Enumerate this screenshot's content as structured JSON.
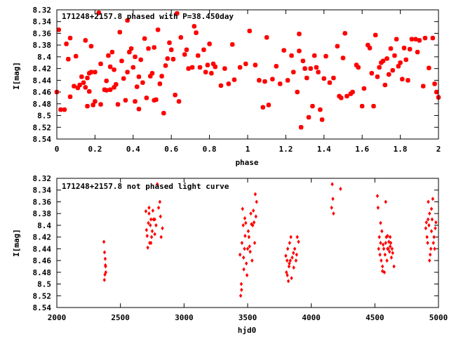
{
  "chart_data": [
    {
      "type": "scatter",
      "title": "171248+2157.8 phased with P=38.450day",
      "xlabel": "phase",
      "ylabel": "I[mag]",
      "xlim": [
        0,
        2
      ],
      "ylim": [
        8.54,
        8.32
      ],
      "y_axis_inverted": true,
      "xticks": [
        "0",
        "0.2",
        "0.4",
        "0.6",
        "0.8",
        "1",
        "1.2",
        "1.4",
        "1.6",
        "1.8",
        "2"
      ],
      "yticks": [
        "8.32",
        "8.34",
        "8.36",
        "8.38",
        "8.4",
        "8.42",
        "8.44",
        "8.46",
        "8.48",
        "8.5",
        "8.52",
        "8.54"
      ],
      "grid": false,
      "marker_color": "#ff0000",
      "marker": "filled-circle",
      "points": [
        [
          0.0,
          8.46
        ],
        [
          0.01,
          8.354
        ],
        [
          0.02,
          8.49
        ],
        [
          0.04,
          8.49
        ],
        [
          0.05,
          8.378
        ],
        [
          0.06,
          8.404
        ],
        [
          0.07,
          8.368
        ],
        [
          0.07,
          8.468
        ],
        [
          0.09,
          8.45
        ],
        [
          0.1,
          8.399
        ],
        [
          0.11,
          8.453
        ],
        [
          0.12,
          8.448
        ],
        [
          0.13,
          8.434
        ],
        [
          0.14,
          8.444
        ],
        [
          0.15,
          8.372
        ],
        [
          0.15,
          8.452
        ],
        [
          0.16,
          8.484
        ],
        [
          0.16,
          8.436
        ],
        [
          0.17,
          8.428
        ],
        [
          0.17,
          8.459
        ],
        [
          0.18,
          8.426
        ],
        [
          0.18,
          8.382
        ],
        [
          0.19,
          8.482
        ],
        [
          0.2,
          8.476
        ],
        [
          0.2,
          8.426
        ],
        [
          0.22,
          8.325
        ],
        [
          0.23,
          8.412
        ],
        [
          0.23,
          8.481
        ],
        [
          0.25,
          8.456
        ],
        [
          0.26,
          8.457
        ],
        [
          0.26,
          8.441
        ],
        [
          0.27,
          8.398
        ],
        [
          0.28,
          8.417
        ],
        [
          0.28,
          8.456
        ],
        [
          0.29,
          8.392
        ],
        [
          0.3,
          8.422
        ],
        [
          0.3,
          8.452
        ],
        [
          0.31,
          8.447
        ],
        [
          0.32,
          8.481
        ],
        [
          0.33,
          8.358
        ],
        [
          0.34,
          8.407
        ],
        [
          0.35,
          8.437
        ],
        [
          0.36,
          8.474
        ],
        [
          0.37,
          8.426
        ],
        [
          0.37,
          8.338
        ],
        [
          0.38,
          8.392
        ],
        [
          0.39,
          8.386
        ],
        [
          0.4,
          8.418
        ],
        [
          0.41,
          8.476
        ],
        [
          0.41,
          8.4
        ],
        [
          0.42,
          8.451
        ],
        [
          0.43,
          8.434
        ],
        [
          0.43,
          8.489
        ],
        [
          0.44,
          8.405
        ],
        [
          0.45,
          8.444
        ],
        [
          0.46,
          8.369
        ],
        [
          0.47,
          8.47
        ],
        [
          0.48,
          8.386
        ],
        [
          0.49,
          8.433
        ],
        [
          0.5,
          8.428
        ],
        [
          0.51,
          8.474
        ],
        [
          0.51,
          8.384
        ],
        [
          0.52,
          8.473
        ],
        [
          0.53,
          8.354
        ],
        [
          0.54,
          8.446
        ],
        [
          0.55,
          8.433
        ],
        [
          0.56,
          8.496
        ],
        [
          0.57,
          8.415
        ],
        [
          0.58,
          8.403
        ],
        [
          0.59,
          8.376
        ],
        [
          0.6,
          8.388
        ],
        [
          0.61,
          8.404
        ],
        [
          0.62,
          8.465
        ],
        [
          0.63,
          8.326
        ],
        [
          0.64,
          8.476
        ],
        [
          0.65,
          8.367
        ],
        [
          0.67,
          8.396
        ],
        [
          0.68,
          8.388
        ],
        [
          0.69,
          8.42
        ],
        [
          0.71,
          8.418
        ],
        [
          0.72,
          8.348
        ],
        [
          0.73,
          8.359
        ],
        [
          0.74,
          8.398
        ],
        [
          0.75,
          8.418
        ],
        [
          0.77,
          8.388
        ],
        [
          0.78,
          8.426
        ],
        [
          0.79,
          8.414
        ],
        [
          0.8,
          8.378
        ],
        [
          0.81,
          8.428
        ],
        [
          0.82,
          8.412
        ],
        [
          0.83,
          8.417
        ],
        [
          0.86,
          8.449
        ],
        [
          0.88,
          8.42
        ],
        [
          0.9,
          8.446
        ],
        [
          0.92,
          8.379
        ],
        [
          0.93,
          8.439
        ],
        [
          0.96,
          8.418
        ],
        [
          0.99,
          8.412
        ],
        [
          1.01,
          8.356
        ],
        [
          1.04,
          8.414
        ],
        [
          1.06,
          8.44
        ],
        [
          1.08,
          8.486
        ],
        [
          1.09,
          8.442
        ],
        [
          1.1,
          8.367
        ],
        [
          1.11,
          8.482
        ],
        [
          1.13,
          8.438
        ],
        [
          1.15,
          8.416
        ],
        [
          1.17,
          8.446
        ],
        [
          1.19,
          8.389
        ],
        [
          1.21,
          8.44
        ],
        [
          1.23,
          8.398
        ],
        [
          1.24,
          8.426
        ],
        [
          1.26,
          8.46
        ],
        [
          1.27,
          8.39
        ],
        [
          1.27,
          8.361
        ],
        [
          1.28,
          8.52
        ],
        [
          1.29,
          8.407
        ],
        [
          1.3,
          8.42
        ],
        [
          1.31,
          8.436
        ],
        [
          1.32,
          8.503
        ],
        [
          1.33,
          8.42
        ],
        [
          1.34,
          8.484
        ],
        [
          1.35,
          8.398
        ],
        [
          1.36,
          8.418
        ],
        [
          1.37,
          8.426
        ],
        [
          1.38,
          8.49
        ],
        [
          1.39,
          8.507
        ],
        [
          1.4,
          8.437
        ],
        [
          1.41,
          8.399
        ],
        [
          1.43,
          8.444
        ],
        [
          1.45,
          8.436
        ],
        [
          1.47,
          8.382
        ],
        [
          1.48,
          8.467
        ],
        [
          1.49,
          8.47
        ],
        [
          1.5,
          8.402
        ],
        [
          1.51,
          8.36
        ],
        [
          1.52,
          8.467
        ],
        [
          1.54,
          8.463
        ],
        [
          1.55,
          8.46
        ],
        [
          1.57,
          8.414
        ],
        [
          1.58,
          8.418
        ],
        [
          1.6,
          8.484
        ],
        [
          1.61,
          8.454
        ],
        [
          1.63,
          8.38
        ],
        [
          1.64,
          8.385
        ],
        [
          1.65,
          8.428
        ],
        [
          1.66,
          8.484
        ],
        [
          1.67,
          8.363
        ],
        [
          1.68,
          8.434
        ],
        [
          1.69,
          8.418
        ],
        [
          1.7,
          8.41
        ],
        [
          1.71,
          8.407
        ],
        [
          1.72,
          8.448
        ],
        [
          1.73,
          8.403
        ],
        [
          1.74,
          8.43
        ],
        [
          1.75,
          8.386
        ],
        [
          1.76,
          8.423
        ],
        [
          1.77,
          8.398
        ],
        [
          1.78,
          8.37
        ],
        [
          1.79,
          8.416
        ],
        [
          1.8,
          8.41
        ],
        [
          1.81,
          8.438
        ],
        [
          1.82,
          8.385
        ],
        [
          1.83,
          8.405
        ],
        [
          1.84,
          8.44
        ],
        [
          1.85,
          8.387
        ],
        [
          1.86,
          8.37
        ],
        [
          1.88,
          8.37
        ],
        [
          1.89,
          8.392
        ],
        [
          1.9,
          8.372
        ],
        [
          1.92,
          8.45
        ],
        [
          1.93,
          8.368
        ],
        [
          1.95,
          8.419
        ],
        [
          1.97,
          8.368
        ],
        [
          1.98,
          8.446
        ],
        [
          1.99,
          8.46
        ],
        [
          2.0,
          8.469
        ]
      ]
    },
    {
      "type": "scatter",
      "title": "171248+2157.8 not phased light curve",
      "xlabel": "hjd0",
      "ylabel": "I[mag]",
      "xlim": [
        2000,
        5000
      ],
      "ylim": [
        8.54,
        8.32
      ],
      "y_axis_inverted": true,
      "xticks": [
        "2000",
        "2500",
        "3000",
        "3500",
        "4000",
        "4500",
        "5000"
      ],
      "yticks": [
        "8.32",
        "8.34",
        "8.36",
        "8.38",
        "8.4",
        "8.42",
        "8.44",
        "8.46",
        "8.48",
        "8.5",
        "8.52",
        "8.54"
      ],
      "grid": false,
      "marker_color": "#ff0000",
      "marker": "filled-diamond",
      "points": [
        [
          2370,
          8.428
        ],
        [
          2375,
          8.446
        ],
        [
          2380,
          8.457
        ],
        [
          2382,
          8.468
        ],
        [
          2385,
          8.48
        ],
        [
          2378,
          8.484
        ],
        [
          2374,
          8.493
        ],
        [
          2383,
          8.47
        ],
        [
          2700,
          8.376
        ],
        [
          2705,
          8.408
        ],
        [
          2710,
          8.418
        ],
        [
          2715,
          8.438
        ],
        [
          2720,
          8.396
        ],
        [
          2725,
          8.38
        ],
        [
          2730,
          8.43
        ],
        [
          2735,
          8.4
        ],
        [
          2740,
          8.39
        ],
        [
          2745,
          8.42
        ],
        [
          2750,
          8.41
        ],
        [
          2755,
          8.375
        ],
        [
          2760,
          8.39
        ],
        [
          2770,
          8.39
        ],
        [
          2780,
          8.4
        ],
        [
          2790,
          8.33
        ],
        [
          2800,
          8.37
        ],
        [
          2810,
          8.36
        ],
        [
          2815,
          8.385
        ],
        [
          2820,
          8.42
        ],
        [
          2830,
          8.405
        ],
        [
          2725,
          8.37
        ],
        [
          2740,
          8.43
        ],
        [
          2770,
          8.415
        ],
        [
          3440,
          8.45
        ],
        [
          3445,
          8.52
        ],
        [
          3450,
          8.5
        ],
        [
          3455,
          8.43
        ],
        [
          3460,
          8.372
        ],
        [
          3465,
          8.4
        ],
        [
          3470,
          8.475
        ],
        [
          3475,
          8.44
        ],
        [
          3480,
          8.418
        ],
        [
          3485,
          8.396
        ],
        [
          3490,
          8.465
        ],
        [
          3495,
          8.485
        ],
        [
          3500,
          8.44
        ],
        [
          3505,
          8.41
        ],
        [
          3510,
          8.42
        ],
        [
          3515,
          8.436
        ],
        [
          3520,
          8.445
        ],
        [
          3525,
          8.38
        ],
        [
          3530,
          8.398
        ],
        [
          3535,
          8.46
        ],
        [
          3540,
          8.4
        ],
        [
          3545,
          8.375
        ],
        [
          3550,
          8.395
        ],
        [
          3555,
          8.43
        ],
        [
          3560,
          8.347
        ],
        [
          3565,
          8.385
        ],
        [
          3570,
          8.36
        ],
        [
          3452,
          8.51
        ],
        [
          3468,
          8.455
        ],
        [
          3478,
          8.388
        ],
        [
          3800,
          8.452
        ],
        [
          3805,
          8.48
        ],
        [
          3810,
          8.46
        ],
        [
          3815,
          8.44
        ],
        [
          3820,
          8.495
        ],
        [
          3825,
          8.47
        ],
        [
          3830,
          8.43
        ],
        [
          3835,
          8.46
        ],
        [
          3840,
          8.42
        ],
        [
          3845,
          8.49
        ],
        [
          3850,
          8.455
        ],
        [
          3860,
          8.447
        ],
        [
          3870,
          8.44
        ],
        [
          3880,
          8.46
        ],
        [
          3890,
          8.42
        ],
        [
          3900,
          8.428
        ],
        [
          3812,
          8.485
        ],
        [
          3828,
          8.465
        ],
        [
          3862,
          8.472
        ],
        [
          3885,
          8.45
        ],
        [
          4160,
          8.37
        ],
        [
          4165,
          8.33
        ],
        [
          4170,
          8.355
        ],
        [
          4175,
          8.38
        ],
        [
          4230,
          8.338
        ],
        [
          4520,
          8.35
        ],
        [
          4525,
          8.37
        ],
        [
          4530,
          8.44
        ],
        [
          4535,
          8.42
        ],
        [
          4540,
          8.45
        ],
        [
          4545,
          8.43
        ],
        [
          4550,
          8.46
        ],
        [
          4555,
          8.41
        ],
        [
          4560,
          8.47
        ],
        [
          4565,
          8.433
        ],
        [
          4570,
          8.44
        ],
        [
          4575,
          8.48
        ],
        [
          4580,
          8.45
        ],
        [
          4585,
          8.43
        ],
        [
          4590,
          8.42
        ],
        [
          4595,
          8.46
        ],
        [
          4600,
          8.44
        ],
        [
          4605,
          8.44
        ],
        [
          4610,
          8.428
        ],
        [
          4615,
          8.445
        ],
        [
          4620,
          8.42
        ],
        [
          4625,
          8.43
        ],
        [
          4630,
          8.455
        ],
        [
          4635,
          8.44
        ],
        [
          4640,
          8.447
        ],
        [
          4650,
          8.47
        ],
        [
          4585,
          8.36
        ],
        [
          4545,
          8.396
        ],
        [
          4560,
          8.478
        ],
        [
          4600,
          8.418
        ],
        [
          4620,
          8.436
        ],
        [
          4900,
          8.405
        ],
        [
          4905,
          8.395
        ],
        [
          4910,
          8.42
        ],
        [
          4915,
          8.43
        ],
        [
          4920,
          8.36
        ],
        [
          4925,
          8.4
        ],
        [
          4930,
          8.38
        ],
        [
          4935,
          8.45
        ],
        [
          4940,
          8.44
        ],
        [
          4945,
          8.41
        ],
        [
          4950,
          8.39
        ],
        [
          4955,
          8.355
        ],
        [
          4960,
          8.43
        ],
        [
          4965,
          8.42
        ],
        [
          4970,
          8.44
        ],
        [
          4975,
          8.405
        ],
        [
          4980,
          8.395
        ],
        [
          4930,
          8.46
        ],
        [
          4918,
          8.39
        ],
        [
          4945,
          8.372
        ]
      ]
    }
  ]
}
